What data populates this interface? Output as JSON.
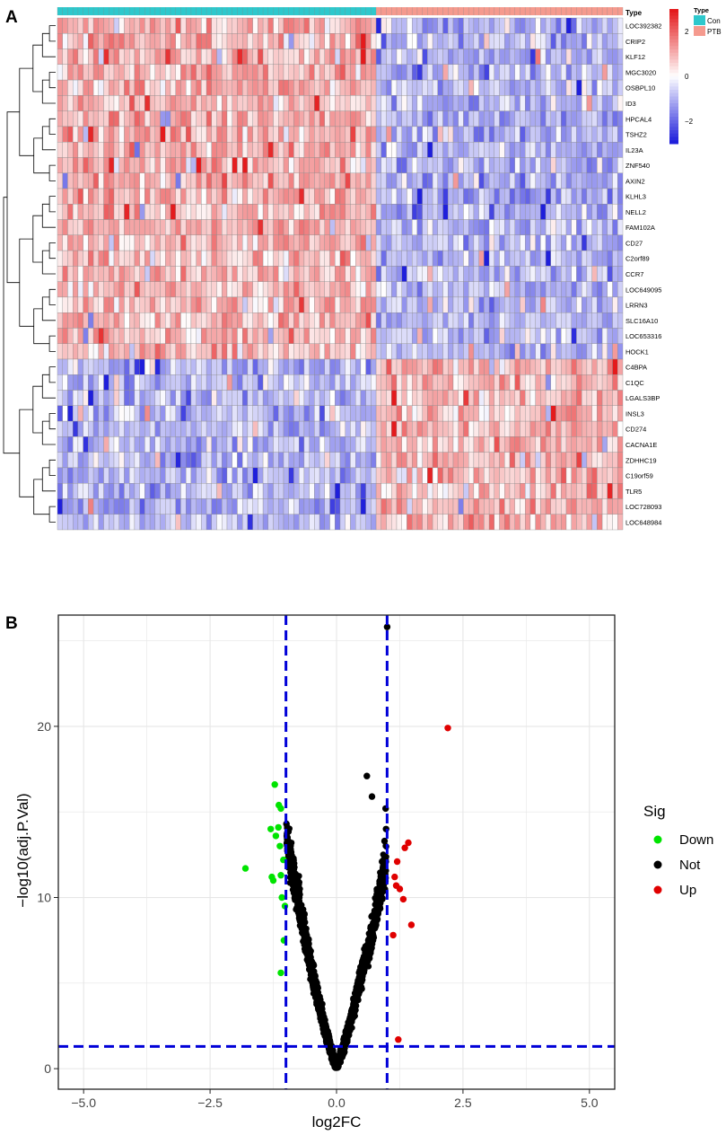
{
  "panels": {
    "a_label": "A",
    "b_label": "B"
  },
  "colors": {
    "low": "#1f1fdb",
    "mid": "#ffffff",
    "high": "#e41a1c",
    "con": "#2ec8cc",
    "ptb": "#f59a8e",
    "down": "#00e400",
    "not": "#000000",
    "up": "#e00000",
    "threshold": "#0000d8"
  },
  "chart_data": [
    {
      "type": "heatmap",
      "title": "",
      "rows": [
        "LOC392382",
        "CRIP2",
        "KLF12",
        "MGC3020",
        "OSBPL10",
        "ID3",
        "HPCAL4",
        "TSHZ2",
        "IL23A",
        "ZNF540",
        "AXIN2",
        "KLHL3",
        "NELL2",
        "FAM102A",
        "CD27",
        "C2orf89",
        "CCR7",
        "LOC649095",
        "LRRN3",
        "SLC16A10",
        "LOC653316",
        "HOCK1",
        "C4BPA",
        "C1QC",
        "LGALS3BP",
        "INSL3",
        "CD274",
        "CACNA1E",
        "ZDHHC19",
        "C19orf59",
        "TLR5",
        "LOC728093",
        "LOC648984"
      ],
      "row_groups": {
        "up_in_con": 22,
        "up_in_ptb": 11
      },
      "columns": {
        "con_count": 62,
        "ptb_count": 48
      },
      "annotation_label": "Type",
      "legend": {
        "scale_title": "Type",
        "scale_ticks": [
          2,
          0,
          -2
        ],
        "scale_range": [
          -3,
          3
        ],
        "groups": [
          {
            "name": "Con",
            "color_key": "con"
          },
          {
            "name": "PTB",
            "color_key": "ptb"
          }
        ]
      },
      "dendrogram": true
    },
    {
      "type": "scatter",
      "title": "",
      "xlabel": "log2FC",
      "ylabel": "−log10(adj.P.Val)",
      "xlim": [
        -5.5,
        5.5
      ],
      "ylim": [
        -1.2,
        26.5
      ],
      "xticks": [
        -5.0,
        -2.5,
        0.0,
        2.5,
        5.0
      ],
      "xtick_labels": [
        "−5.0",
        "−2.5",
        "0.0",
        "2.5",
        "5.0"
      ],
      "yticks": [
        0,
        10,
        20
      ],
      "ytick_labels": [
        "0",
        "10",
        "20"
      ],
      "vlines": [
        -1,
        1
      ],
      "hlines": [
        1.3
      ],
      "grid": true,
      "legend_title": "Sig",
      "legend_position": "right",
      "series": [
        {
          "name": "Down",
          "color_key": "down",
          "points": [
            [
              -1.8,
              11.7
            ],
            [
              -1.22,
              16.6
            ],
            [
              -1.14,
              15.4
            ],
            [
              -1.1,
              15.2
            ],
            [
              -1.3,
              14.0
            ],
            [
              -1.15,
              14.1
            ],
            [
              -1.2,
              13.6
            ],
            [
              -1.12,
              13.0
            ],
            [
              -1.05,
              12.2
            ],
            [
              -1.28,
              11.2
            ],
            [
              -1.25,
              11.0
            ],
            [
              -1.1,
              11.3
            ],
            [
              -1.08,
              10.0
            ],
            [
              -1.02,
              9.5
            ],
            [
              -1.04,
              7.5
            ],
            [
              -1.1,
              5.6
            ]
          ]
        },
        {
          "name": "Up",
          "color_key": "up",
          "points": [
            [
              2.2,
              19.9
            ],
            [
              1.42,
              13.2
            ],
            [
              1.35,
              12.9
            ],
            [
              1.2,
              12.1
            ],
            [
              1.15,
              11.2
            ],
            [
              1.18,
              10.7
            ],
            [
              1.25,
              10.5
            ],
            [
              1.32,
              9.9
            ],
            [
              1.48,
              8.4
            ],
            [
              1.12,
              7.8
            ],
            [
              1.22,
              1.7
            ]
          ]
        },
        {
          "name": "Not",
          "color_key": "not",
          "points": [
            [
              1.0,
              25.8
            ],
            [
              0.6,
              17.1
            ],
            [
              0.7,
              15.9
            ],
            [
              0.97,
              15.2
            ],
            [
              0.98,
              14.0
            ],
            [
              0.95,
              13.3
            ],
            [
              0.9,
              12.1
            ],
            [
              0.92,
              10.7
            ],
            [
              -0.99,
              14.3
            ],
            [
              -0.97,
              13.5
            ]
          ]
        }
      ],
      "cloud": true
    }
  ]
}
